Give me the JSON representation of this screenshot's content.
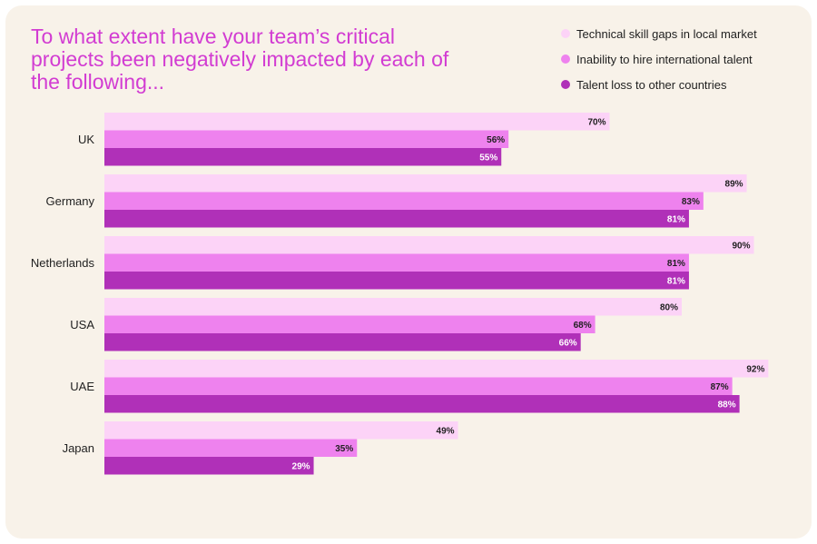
{
  "chart_data": {
    "type": "bar",
    "orientation": "horizontal",
    "title": "To what extent have your team’s critical projects been negatively impacted by each of the following...",
    "categories": [
      "UK",
      "Germany",
      "Netherlands",
      "USA",
      "UAE",
      "Japan"
    ],
    "series": [
      {
        "name": "Technical skill gaps in local market",
        "color": "#fcd3f7",
        "values": [
          70,
          89,
          90,
          80,
          92,
          49
        ]
      },
      {
        "name": "Inability to hire international talent",
        "color": "#ee82ee",
        "values": [
          56,
          83,
          81,
          68,
          87,
          35
        ]
      },
      {
        "name": "Talent loss to other countries",
        "color": "#b030b8",
        "values": [
          55,
          81,
          81,
          66,
          88,
          29
        ]
      }
    ],
    "value_suffix": "%",
    "xlim": [
      0,
      100
    ],
    "grid": false,
    "legend_position": "top-right"
  }
}
